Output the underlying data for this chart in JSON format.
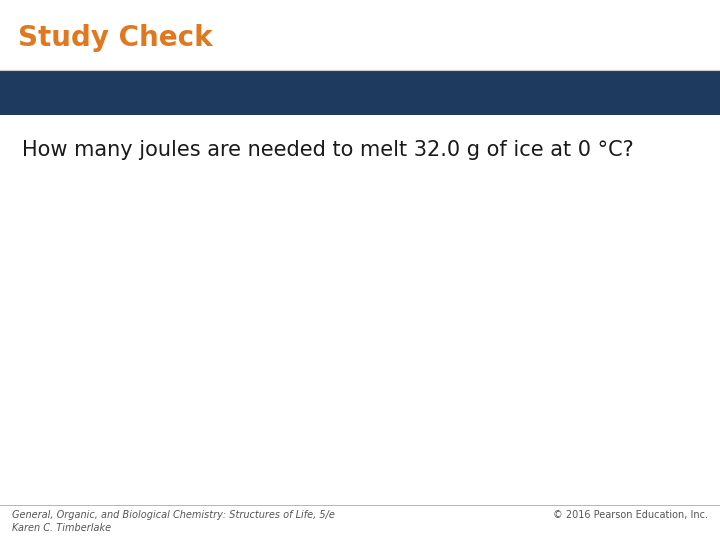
{
  "title": "Study Check",
  "title_color": "#E07820",
  "title_fontsize": 20,
  "title_bold": true,
  "banner_color": "#1E3A5F",
  "question_text": "How many joules are needed to melt 32.0 g of ice at 0 °C?",
  "question_fontsize": 15,
  "footer_left": "General, Organic, and Biological Chemistry: Structures of Life, 5/e\nKaren C. Timberlake",
  "footer_right": "© 2016 Pearson Education, Inc.",
  "footer_fontsize": 7,
  "footer_color": "#555555",
  "background_color": "#FFFFFF"
}
